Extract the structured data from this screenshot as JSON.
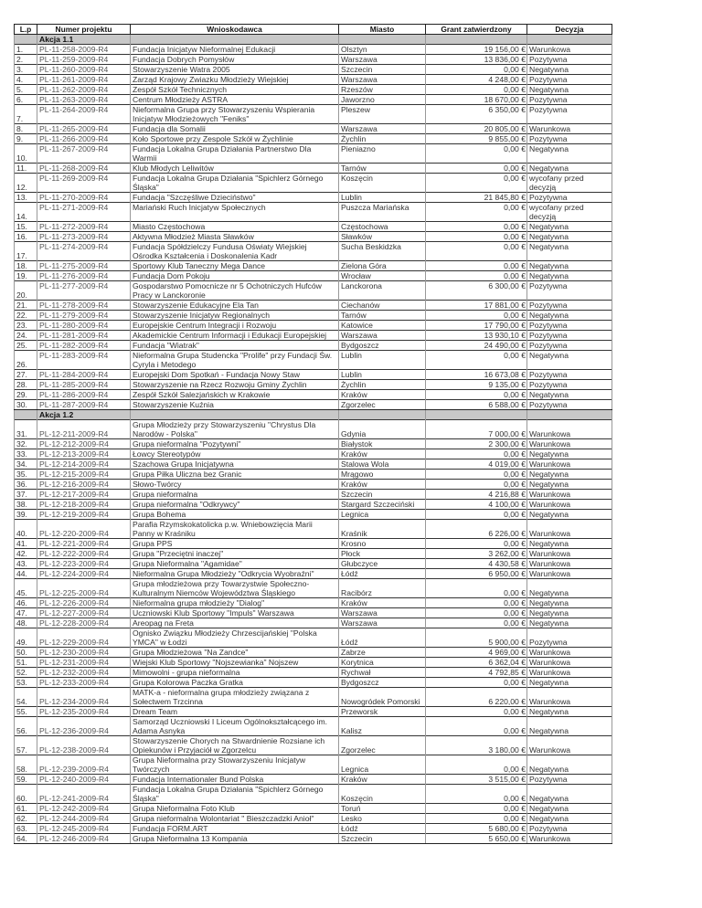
{
  "headers": {
    "lp": "L.p",
    "numer": "Numer projektu",
    "wnioskodawca": "Wnioskodawca",
    "miasto": "Miasto",
    "grant": "Grant zatwierdzony",
    "decyzja": "Decyzja"
  },
  "sections": [
    {
      "title": "Akcja 1.1",
      "rows": [
        [
          "1.",
          "PL-11-258-2009-R4",
          "Fundacja Inicjatyw Nieformalnej Edukacji",
          "Olsztyn",
          "19 156,00 €",
          "Warunkowa"
        ],
        [
          "2.",
          "PL-11-259-2009-R4",
          "Fundacja Dobrych Pomysłów",
          "Warszawa",
          "13 836,00 €",
          "Pozytywna"
        ],
        [
          "3.",
          "PL-11-260-2009-R4",
          "Stowarzyszenie Watra 2005",
          "Szczecin",
          "0,00 €",
          "Negatywna"
        ],
        [
          "4.",
          "PL-11-261-2009-R4",
          "Zarząd Krajowy Zwiazku Młodzieży Wiejskiej",
          "Warszawa",
          "4 248,00 €",
          "Pozytywna"
        ],
        [
          "5.",
          "PL-11-262-2009-R4",
          "Zespół Szkół Technicznych",
          "Rzeszów",
          "0,00 €",
          "Negatywna"
        ],
        [
          "6.",
          "PL-11-263-2009-R4",
          "Centrum Młodzieży ASTRA",
          "Jaworzno",
          "18 670,00 €",
          "Pozytywna"
        ],
        [
          "7.",
          "PL-11-264-2009-R4",
          "Nieformalna Grupa przy Stowarzyszeniu Wspierania Inicjatyw Młodzieżowych \"Feniks\"",
          "Pleszew",
          "6 350,00 €",
          "Pozytywna"
        ],
        [
          "8.",
          "PL-11-265-2009-R4",
          "Fundacja dla Somalii",
          "Warszawa",
          "20 805,00 €",
          "Warunkowa"
        ],
        [
          "9.",
          "PL-11-266-2009-R4",
          "Koło Sportowe przy Zespole Szkół w Żychlinie",
          "Żychlin",
          "9 855,00 €",
          "Pozytywna"
        ],
        [
          "10.",
          "PL-11-267-2009-R4",
          "Fundacja Lokalna Grupa Działania Partnerstwo Dla Warmii",
          "Pieniazno",
          "0,00 €",
          "Negatywna"
        ],
        [
          "11.",
          "PL-11-268-2009-R4",
          "Klub Młodych Leliwitów",
          "Tarnów",
          "0,00 €",
          "Negatywna"
        ],
        [
          "12.",
          "PL-11-269-2009-R4",
          "Fundacja Lokalna Grupa Działania \"Spichlerz Górnego Śląska\"",
          "Koszęcin",
          "0,00 €",
          "wycofany przed decyzją"
        ],
        [
          "13.",
          "PL-11-270-2009-R4",
          "Fundacja \"Szczęśliwe Dzieciństwo\"",
          "Lublin",
          "21 845,80 €",
          "Pozytywna"
        ],
        [
          "14.",
          "PL-11-271-2009-R4",
          "Mariański Ruch Inicjatyw Społecznych",
          "Puszcza Mariańska",
          "0,00 €",
          "wycofany przed decyzją"
        ],
        [
          "15.",
          "PL-11-272-2009-R4",
          "Miasto Częstochowa",
          "Częstochowa",
          "0,00 €",
          "Negatywna"
        ],
        [
          "16.",
          "PL-11-273-2009-R4",
          "Aktywna Młodzież Miasta Sławków",
          "Sławków",
          "0,00 €",
          "Negatywna"
        ],
        [
          "17.",
          "PL-11-274-2009-R4",
          "Fundacja Spółdzielczy Fundusa Oświaty Wiejskiej Ośrodka Kształcenia i Doskonalenia Kadr",
          "Sucha Beskidzka",
          "0,00 €",
          "Negatywna"
        ],
        [
          "18.",
          "PL-11-275-2009-R4",
          "Sportowy Klub Taneczny Mega Dance",
          "Zielona Góra",
          "0,00 €",
          "Negatywna"
        ],
        [
          "19.",
          "PL-11-276-2009-R4",
          "Fundacja Dom Pokoju",
          "Wrocław",
          "0,00 €",
          "Negatywna"
        ],
        [
          "20.",
          "PL-11-277-2009-R4",
          "Gospodarstwo Pomocnicze nr 5 Ochotniczych Hufców Pracy w Lanckoronie",
          "Lanckorona",
          "6 300,00 €",
          "Pozytywna"
        ],
        [
          "21.",
          "PL-11-278-2009-R4",
          "Stowarzyszenie Edukacyjne Ela Tan",
          "Ciechanów",
          "17 881,00 €",
          "Pozytywna"
        ],
        [
          "22.",
          "PL-11-279-2009-R4",
          "Stowarzyszenie Inicjatyw Regionalnych",
          "Tarnów",
          "0,00 €",
          "Negatywna"
        ],
        [
          "23.",
          "PL-11-280-2009-R4",
          "Europejskie Centrum Integracji i Rozwoju",
          "Katowice",
          "17 790,00 €",
          "Pozytywna"
        ],
        [
          "24.",
          "PL-11-281-2009-R4",
          "Akademickie Centrum Informacji i Edukacji Europejskiej",
          "Warszawa",
          "13 930,10 €",
          "Pozytywna"
        ],
        [
          "25.",
          "PL-11-282-2009-R4",
          "Fundacja \"Wiatrak\"",
          "Bydgoszcz",
          "24 490,00 €",
          "Pozytywna"
        ],
        [
          "26.",
          "PL-11-283-2009-R4",
          "Nieformalna Grupa Studencka \"Prolife\" przy Fundacji Św. Cyryla i Metodego",
          "Lublin",
          "0,00 €",
          "Negatywna"
        ],
        [
          "27.",
          "PL-11-284-2009-R4",
          "Europejski Dom Spotkań - Fundacja Nowy Staw",
          "Lublin",
          "16 673,08 €",
          "Pozytywna"
        ],
        [
          "28.",
          "PL-11-285-2009-R4",
          "Stowarzyszenie na Rzecz Rozwoju Gminy Żychlin",
          "Żychlin",
          "9 135,00 €",
          "Pozytywna"
        ],
        [
          "29.",
          "PL-11-286-2009-R4",
          "Zespół Szkół Salezjańskich w Krakowie",
          "Kraków",
          "0,00 €",
          "Negatywna"
        ],
        [
          "30.",
          "PL-11-287-2009-R4",
          "Stowarzyszenie Kuźnia",
          "Zgorzelec",
          "6 588,00 €",
          "Pozytywna"
        ]
      ]
    },
    {
      "title": "Akcja 1.2",
      "rows": [
        [
          "31.",
          "PL-12-211-2009-R4",
          "Grupa Młodzieży przy Stowarzyszeniu \"Chrystus Dla Narodów - Polska\"",
          "Gdynia",
          "7 000,00 €",
          "Warunkowa"
        ],
        [
          "32.",
          "PL-12-212-2009-R4",
          "Grupa nieformalna \"Pozytywni\"",
          "Białystok",
          "2 300,00 €",
          "Warunkowa"
        ],
        [
          "33.",
          "PL-12-213-2009-R4",
          "Łowcy Stereotypów",
          "Kraków",
          "0,00 €",
          "Negatywna"
        ],
        [
          "34.",
          "PL-12-214-2009-R4",
          "Szachowa Grupa Inicjatywna",
          "Stalowa Wola",
          "4 019,00 €",
          "Warunkowa"
        ],
        [
          "35.",
          "PL-12-215-2009-R4",
          "Grupa Piłka Uliczna bez Granic",
          "Mrągowo",
          "0,00 €",
          "Negatywna"
        ],
        [
          "36.",
          "PL-12-216-2009-R4",
          "Słowo-Twórcy",
          "Kraków",
          "0,00 €",
          "Negatywna"
        ],
        [
          "37.",
          "PL-12-217-2009-R4",
          "Grupa nieformalna",
          "Szczecin",
          "4 216,88 €",
          "Warunkowa"
        ],
        [
          "38.",
          "PL-12-218-2009-R4",
          "Grupa nieformalna \"Odkrywcy\"",
          "Stargard Szczeciński",
          "4 100,00 €",
          "Warunkowa"
        ],
        [
          "39.",
          "PL-12-219-2009-R4",
          "Grupa Bohema",
          "Legnica",
          "0,00 €",
          "Negatywna"
        ],
        [
          "40.",
          "PL-12-220-2009-R4",
          "Parafia Rzymskokatolicka p.w. Wniebowzięcia Marii Panny w Kraśniku",
          "Kraśnik",
          "6 226,00 €",
          "Warunkowa"
        ],
        [
          "41.",
          "PL-12-221-2009-R4",
          "Grupa PPS",
          "Krosno",
          "0,00 €",
          "Negatywna"
        ],
        [
          "42.",
          "PL-12-222-2009-R4",
          "Grupa \"Przeciętni inaczej\"",
          "Płock",
          "3 262,00 €",
          "Warunkowa"
        ],
        [
          "43.",
          "PL-12-223-2009-R4",
          "Grupa Nieformalna \"Agamidae\"",
          "Głubczyce",
          "4 430,58 €",
          "Warunkowa"
        ],
        [
          "44.",
          "PL-12-224-2009-R4",
          "Nieformalna Grupa Młodzieży \"Odkrycia Wyobraźni\"",
          "Łódź",
          "6 950,00 €",
          "Warunkowa"
        ],
        [
          "45.",
          "PL-12-225-2009-R4",
          "Grupa młodzieżowa przy Towarzystwie Społeczno-Kulturalnym Niemców Województwa Śląskiego",
          "Racibórz",
          "0,00 €",
          "Negatywna"
        ],
        [
          "46.",
          "PL-12-226-2009-R4",
          "Nieformalna grupa młodzieży \"Dialog\"",
          "Kraków",
          "0,00 €",
          "Negatywna"
        ],
        [
          "47.",
          "PL-12-227-2009-R4",
          "Uczniowski Klub Sportowy \"Impuls\" Warszawa",
          "Warszawa",
          "0,00 €",
          "Negatywna"
        ],
        [
          "48.",
          "PL-12-228-2009-R4",
          "Areopag na Freta",
          "Warszawa",
          "0,00 €",
          "Negatywna"
        ],
        [
          "49.",
          "PL-12-229-2009-R4",
          "Ognisko Związku Młodzieży Chrzescijańskiej \"Polska YMCA\" w Łodzi",
          "Łódź",
          "5 900,00 €",
          "Pozytywna"
        ],
        [
          "50.",
          "PL-12-230-2009-R4",
          "Grupa Młodzieżowa \"Na Zandce\"",
          "Zabrze",
          "4 969,00 €",
          "Warunkowa"
        ],
        [
          "51.",
          "PL-12-231-2009-R4",
          "Wiejski Klub Sportowy \"Nojszewianka\" Nojszew",
          "Korytnica",
          "6 362,04 €",
          "Warunkowa"
        ],
        [
          "52.",
          "PL-12-232-2009-R4",
          "Mimowolni - grupa nieformalna",
          "Rychwał",
          "4 792,85 €",
          "Warunkowa"
        ],
        [
          "53.",
          "PL-12-233-2009-R4",
          "Grupa Kolorowa Paczka Gratka",
          "Bydgoszcz",
          "0,00 €",
          "Negatywna"
        ],
        [
          "54.",
          "PL-12-234-2009-R4",
          "MATK-a - nieformalna grupa młodzieży związana z Sołectwem Trzcinna",
          "Nowogródek Pomorski",
          "6 220,00 €",
          "Warunkowa"
        ],
        [
          "55.",
          "PL-12-235-2009-R4",
          "Dream Team",
          "Przeworsk",
          "0,00 €",
          "Negatywna"
        ],
        [
          "56.",
          "PL-12-236-2009-R4",
          "Samorząd Uczniowski I Liceum Ogólnokształcącego im. Adama Asnyka",
          "Kalisz",
          "0,00 €",
          "Negatywna"
        ],
        [
          "57.",
          "PL-12-238-2009-R4",
          "Stowarzyszenie Chorych na Stwardnienie Rozsiane ich Opiekunów i Przyjaciół w Zgorzelcu",
          "Zgorzelec",
          "3 180,00 €",
          "Warunkowa"
        ],
        [
          "58.",
          "PL-12-239-2009-R4",
          "Grupa Nieformalna przy Stowarzyszeniu Inicjatyw Twórczych",
          "Legnica",
          "0,00 €",
          "Negatywna"
        ],
        [
          "59.",
          "PL-12-240-2009-R4",
          "Fundacja Internationaler Bund Polska",
          "Kraków",
          "3 515,00 €",
          "Pozytywna"
        ],
        [
          "60.",
          "PL-12-241-2009-R4",
          "Fundacja Lokalna Grupa Działania \"Spichlerz Górnego Śląska\"",
          "Koszęcin",
          "0,00 €",
          "Negatywna"
        ],
        [
          "61.",
          "PL-12-242-2009-R4",
          "Grupa Nieformalna Foto Klub",
          "Toruń",
          "0,00 €",
          "Negatywna"
        ],
        [
          "62.",
          "PL-12-244-2009-R4",
          "Grupa nieformalna Wolontariat \" Bieszczadzki Anioł\"",
          "Lesko",
          "0,00 €",
          "Negatywna"
        ],
        [
          "63.",
          "PL-12-245-2009-R4",
          "Fundacja FORM.ART",
          "Łódź",
          "5 680,00 €",
          "Pozytywna"
        ],
        [
          "64.",
          "PL-12-246-2009-R4",
          "Grupa Nieformalna 13 Kompania",
          "Szczecin",
          "5 650,00 €",
          "Warunkowa"
        ]
      ]
    }
  ]
}
